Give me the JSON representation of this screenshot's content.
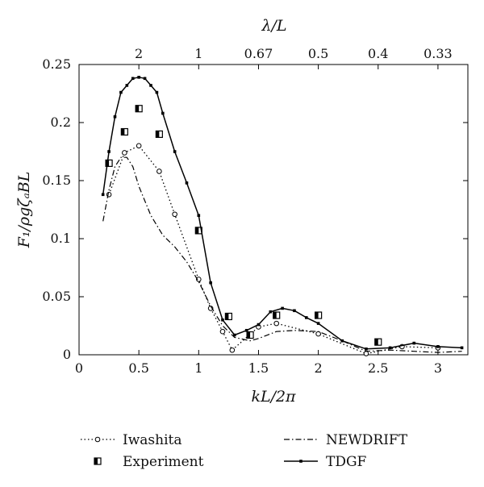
{
  "chart_data": {
    "type": "line",
    "xlabel": "kL/2π",
    "ylabel": "F₁/ρgζₐBL",
    "top_axis_label": "λ/L",
    "xlim": [
      0,
      3.25
    ],
    "ylim": [
      0,
      0.25
    ],
    "x_ticks": [
      0,
      0.5,
      1,
      1.5,
      2,
      2.5,
      3
    ],
    "x_tick_labels": [
      "0",
      "0.5",
      "1",
      "1.5",
      "2",
      "2.5",
      "3"
    ],
    "y_ticks": [
      0,
      0.05,
      0.1,
      0.15,
      0.2,
      0.25
    ],
    "y_tick_labels": [
      "0",
      "0.05",
      "0.1",
      "0.15",
      "0.2",
      "0.25"
    ],
    "top_ticks": [
      {
        "x": 0.5,
        "label": "2"
      },
      {
        "x": 1.0,
        "label": "1"
      },
      {
        "x": 1.5,
        "label": "0.67"
      },
      {
        "x": 2.0,
        "label": "0.5"
      },
      {
        "x": 2.5,
        "label": "0.4"
      },
      {
        "x": 3.0,
        "label": "0.33"
      }
    ],
    "grid": false,
    "legend_position": "bottom",
    "series": [
      {
        "name": "Iwashita",
        "style": "dotted-open-circle",
        "x": [
          0.25,
          0.38,
          0.5,
          0.67,
          0.8,
          1.0,
          1.1,
          1.2,
          1.28,
          1.5,
          1.65,
          2.0,
          2.4,
          2.7,
          3.0
        ],
        "y": [
          0.138,
          0.174,
          0.18,
          0.158,
          0.121,
          0.065,
          0.04,
          0.02,
          0.004,
          0.024,
          0.027,
          0.018,
          0.001,
          0.007,
          0.006
        ]
      },
      {
        "name": "Experiment",
        "style": "half-filled-square",
        "x": [
          0.25,
          0.38,
          0.5,
          0.67,
          1.0,
          1.25,
          1.43,
          1.65,
          2.0,
          2.5
        ],
        "y": [
          0.165,
          0.192,
          0.212,
          0.19,
          0.107,
          0.033,
          0.017,
          0.034,
          0.034,
          0.011
        ]
      },
      {
        "name": "NEWDRIFT",
        "style": "dash-dot",
        "x": [
          0.2,
          0.25,
          0.3,
          0.35,
          0.4,
          0.45,
          0.5,
          0.6,
          0.7,
          0.8,
          0.9,
          1.0,
          1.1,
          1.2,
          1.3,
          1.43,
          1.5,
          1.65,
          1.8,
          2.0,
          2.2,
          2.4,
          2.6,
          2.8,
          3.0,
          3.2
        ],
        "y": [
          0.115,
          0.142,
          0.162,
          0.17,
          0.17,
          0.162,
          0.145,
          0.12,
          0.103,
          0.093,
          0.08,
          0.063,
          0.042,
          0.025,
          0.015,
          0.012,
          0.014,
          0.02,
          0.021,
          0.02,
          0.012,
          0.003,
          0.004,
          0.003,
          0.002,
          0.003
        ]
      },
      {
        "name": "TDGF",
        "style": "solid-small-square",
        "x": [
          0.2,
          0.25,
          0.3,
          0.35,
          0.4,
          0.45,
          0.5,
          0.55,
          0.6,
          0.65,
          0.7,
          0.8,
          0.9,
          1.0,
          1.1,
          1.2,
          1.3,
          1.4,
          1.5,
          1.6,
          1.7,
          1.8,
          1.9,
          2.0,
          2.2,
          2.4,
          2.6,
          2.8,
          3.0,
          3.2
        ],
        "y": [
          0.138,
          0.175,
          0.205,
          0.226,
          0.232,
          0.238,
          0.239,
          0.238,
          0.232,
          0.226,
          0.208,
          0.175,
          0.148,
          0.12,
          0.062,
          0.03,
          0.017,
          0.021,
          0.026,
          0.037,
          0.04,
          0.038,
          0.032,
          0.027,
          0.012,
          0.005,
          0.006,
          0.01,
          0.007,
          0.006
        ]
      }
    ]
  }
}
